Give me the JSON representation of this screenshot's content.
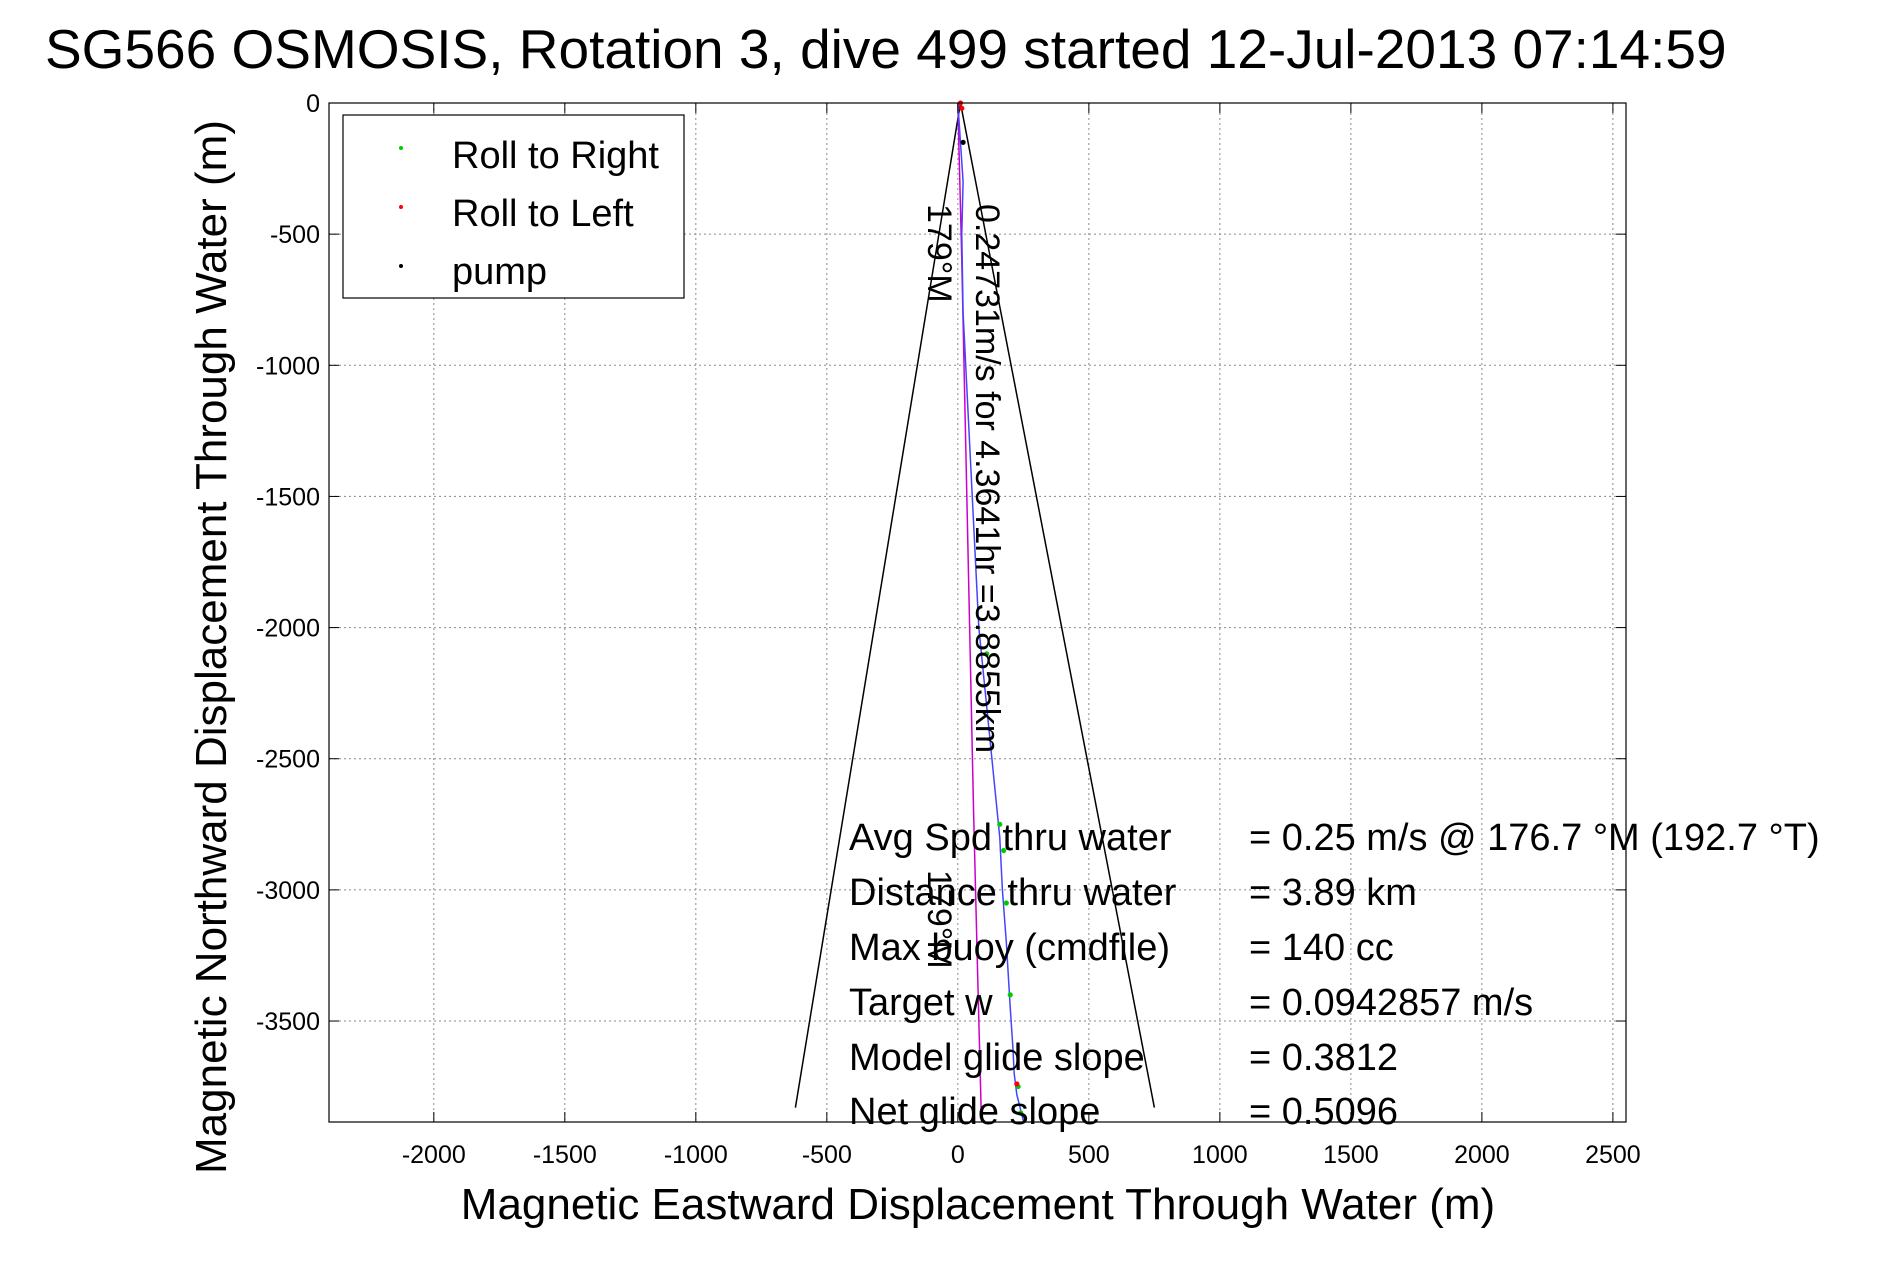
{
  "chart_data": {
    "type": "scatter",
    "title": "SG566 OSMOSIS, Rotation 3, dive 499 started 12-Jul-2013 07:14:59",
    "xlabel": "Magnetic Eastward Displacement Through Water (m)",
    "ylabel": "Magnetic Northward Displacement Through Water (m)",
    "xlim": [
      -2400,
      2550
    ],
    "ylim": [
      -3885,
      0
    ],
    "x_ticks": [
      -2000,
      -1500,
      -1000,
      -500,
      0,
      500,
      1000,
      1500,
      2000,
      2500
    ],
    "x_tick_labels": [
      "-2000",
      "-1500",
      "-1000",
      "-500",
      "0",
      "500",
      "1000",
      "1500",
      "2000",
      "2500"
    ],
    "y_ticks": [
      0,
      -500,
      -1000,
      -1500,
      -2000,
      -2500,
      -3000,
      -3500
    ],
    "y_tick_labels": [
      "0",
      "-500",
      "-1000",
      "-1500",
      "-2000",
      "-2500",
      "-3000",
      "-3500"
    ],
    "grid": true,
    "legend": {
      "position": "top-left",
      "entries": [
        {
          "label": "Roll to Right",
          "color": "#00cc00"
        },
        {
          "label": "Roll to Left",
          "color": "#ff0000"
        },
        {
          "label": "pump",
          "color": "#000000"
        }
      ]
    },
    "series": [
      {
        "name": "Roll to Right",
        "color": "#00cc00",
        "x": [
          110,
          160,
          175,
          185,
          200,
          230,
          240
        ],
        "y": [
          -2100,
          -2750,
          -2850,
          -3050,
          -3400,
          -3750,
          -3850
        ]
      },
      {
        "name": "Roll to Left",
        "color": "#ff0000",
        "x": [
          10,
          15,
          225
        ],
        "y": [
          0,
          -20,
          -3740
        ]
      },
      {
        "name": "pump",
        "color": "#000000",
        "x": [
          20
        ],
        "y": [
          -150
        ]
      }
    ],
    "track": {
      "color": "#4444ff",
      "x": [
        0,
        10,
        20,
        15,
        20,
        40,
        60,
        80,
        110,
        140,
        160,
        170,
        185,
        200,
        210,
        215,
        225,
        240,
        250
      ],
      "y": [
        0,
        -150,
        -300,
        -500,
        -800,
        -1200,
        -1600,
        -2000,
        -2300,
        -2600,
        -2800,
        -3000,
        -3200,
        -3450,
        -3600,
        -3700,
        -3780,
        -3840,
        -3880
      ]
    },
    "drift_track": {
      "color": "#cc00cc",
      "x": [
        0,
        15,
        30,
        45,
        60,
        75,
        90
      ],
      "y": [
        0,
        -600,
        -1300,
        -2000,
        -2700,
        -3300,
        -3880
      ]
    },
    "heading_lines": {
      "color": "#000000",
      "apex": [
        10,
        0
      ],
      "left_end": [
        -620,
        -3830
      ],
      "right_end": [
        750,
        -3830
      ]
    },
    "annotations": {
      "rotated_heading_top": "179°M",
      "rotated_heading_bottom": "179°M",
      "rotated_speed": "0.24731m/s for 4.3641hr =3.8855km"
    },
    "stats": [
      {
        "label": "Avg Spd thru water",
        "value": "=  0.25 m/s @ 176.7  °M (192.7 °T)"
      },
      {
        "label": "Distance thru water",
        "value": "=  3.89 km"
      },
      {
        "label": "Max buoy (cmdfile)",
        "value": "= 140 cc"
      },
      {
        "label": "Target w",
        "value": "= 0.0942857 m/s"
      },
      {
        "label": "Model glide slope",
        "value": "= 0.3812"
      },
      {
        "label": "Net glide slope",
        "value": "= 0.5096"
      }
    ]
  }
}
